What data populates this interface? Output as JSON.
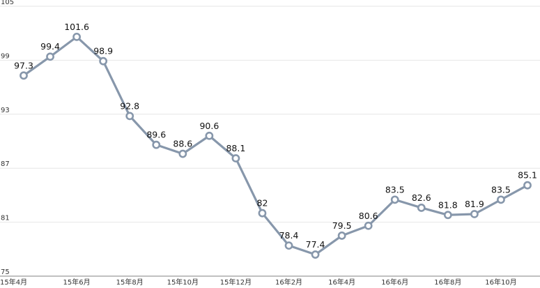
{
  "chart_data": {
    "type": "line",
    "title": "",
    "xlabel": "",
    "ylabel": "",
    "ylim": [
      75,
      105
    ],
    "yticks": [
      75,
      81,
      87,
      93,
      99,
      105
    ],
    "grid": true,
    "legend": "none",
    "categories": [
      "15年4月",
      "",
      "15年6月",
      "",
      "15年8月",
      "",
      "15年10月",
      "",
      "15年12月",
      "",
      "16年2月",
      "",
      "16年4月",
      "",
      "16年6月",
      "",
      "16年8月",
      "",
      "16年10月",
      ""
    ],
    "series": [
      {
        "values": [
          97.3,
          99.4,
          101.6,
          98.9,
          92.8,
          89.6,
          88.6,
          90.6,
          88.1,
          82,
          78.4,
          77.4,
          79.5,
          80.6,
          83.5,
          82.6,
          81.8,
          81.9,
          83.5,
          85.1
        ],
        "color": "#8797ab"
      }
    ]
  }
}
